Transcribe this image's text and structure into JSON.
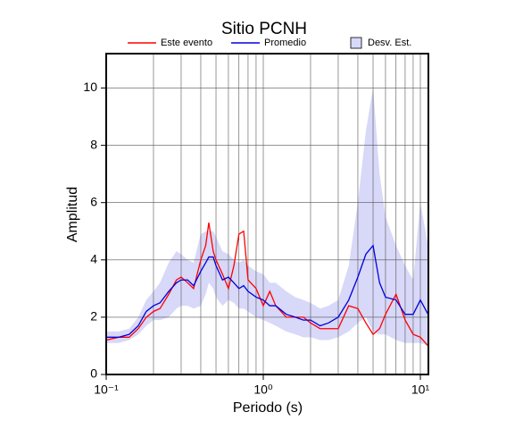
{
  "chart_data": {
    "type": "line",
    "title": "Sitio PCNH",
    "xlabel": "Periodo (s)",
    "ylabel": "Amplitud",
    "xscale": "log",
    "grid": true,
    "xlim": [
      0.1,
      11.25
    ],
    "ylim": [
      0,
      11.2
    ],
    "xticks": [
      {
        "value": 0.1,
        "label": "10⁻¹"
      },
      {
        "value": 1,
        "label": "10⁰"
      },
      {
        "value": 10,
        "label": "10¹"
      }
    ],
    "yticks": [
      0,
      2,
      4,
      6,
      8,
      10
    ],
    "x": [
      0.1,
      0.12,
      0.14,
      0.16,
      0.18,
      0.2,
      0.22,
      0.25,
      0.28,
      0.3,
      0.33,
      0.36,
      0.4,
      0.43,
      0.45,
      0.48,
      0.5,
      0.55,
      0.6,
      0.65,
      0.7,
      0.75,
      0.8,
      0.9,
      1.0,
      1.1,
      1.2,
      1.4,
      1.6,
      1.8,
      2.0,
      2.3,
      2.6,
      3.0,
      3.5,
      4.0,
      4.5,
      5.0,
      5.5,
      6.0,
      7.0,
      8.0,
      9.0,
      10,
      11.2
    ],
    "series": [
      {
        "name": "Este evento",
        "color": "#ff0000",
        "values": [
          1.2,
          1.3,
          1.3,
          1.6,
          2.0,
          2.2,
          2.3,
          2.8,
          3.3,
          3.4,
          3.2,
          3.0,
          4.0,
          4.5,
          5.3,
          4.3,
          4.0,
          3.5,
          3.0,
          3.8,
          4.9,
          5.0,
          3.3,
          3.0,
          2.4,
          2.9,
          2.4,
          2.0,
          2.0,
          2.0,
          1.8,
          1.6,
          1.6,
          1.6,
          2.4,
          2.3,
          1.8,
          1.4,
          1.6,
          2.1,
          2.8,
          1.9,
          1.4,
          1.3,
          1.0
        ]
      },
      {
        "name": "Promedio",
        "color": "#0000dd",
        "values": [
          1.3,
          1.3,
          1.4,
          1.7,
          2.2,
          2.4,
          2.5,
          2.9,
          3.2,
          3.3,
          3.3,
          3.1,
          3.6,
          3.9,
          4.1,
          4.1,
          3.8,
          3.3,
          3.4,
          3.2,
          3.0,
          3.1,
          2.9,
          2.7,
          2.6,
          2.4,
          2.4,
          2.1,
          2.0,
          1.9,
          1.9,
          1.7,
          1.8,
          2.0,
          2.6,
          3.4,
          4.2,
          4.5,
          3.2,
          2.7,
          2.6,
          2.1,
          2.1,
          2.6,
          2.1
        ]
      },
      {
        "name": "Desv. Est.",
        "color": "#d8d8f8",
        "band": true,
        "values": [
          1.5,
          1.5,
          1.6,
          2.0,
          2.6,
          2.9,
          3.2,
          3.9,
          4.3,
          4.2,
          4.0,
          3.9,
          4.9,
          5.0,
          5.0,
          5.0,
          4.8,
          4.3,
          4.2,
          4.0,
          3.9,
          4.0,
          3.8,
          3.6,
          3.5,
          3.2,
          3.2,
          2.9,
          2.7,
          2.6,
          2.5,
          2.3,
          2.4,
          2.6,
          3.8,
          6.0,
          8.5,
          10.0,
          7.0,
          5.5,
          4.5,
          3.8,
          3.3,
          6.0,
          4.5
        ],
        "lower": [
          1.1,
          1.1,
          1.2,
          1.4,
          1.7,
          1.9,
          1.9,
          2.0,
          2.3,
          2.4,
          2.4,
          2.3,
          2.4,
          2.8,
          3.2,
          3.0,
          2.7,
          2.4,
          2.6,
          2.5,
          2.3,
          2.3,
          2.2,
          2.0,
          1.9,
          1.8,
          1.7,
          1.5,
          1.4,
          1.3,
          1.3,
          1.2,
          1.2,
          1.3,
          1.5,
          1.8,
          2.0,
          1.5,
          1.4,
          1.4,
          1.2,
          1.1,
          1.1,
          1.1,
          1.0
        ]
      }
    ]
  }
}
